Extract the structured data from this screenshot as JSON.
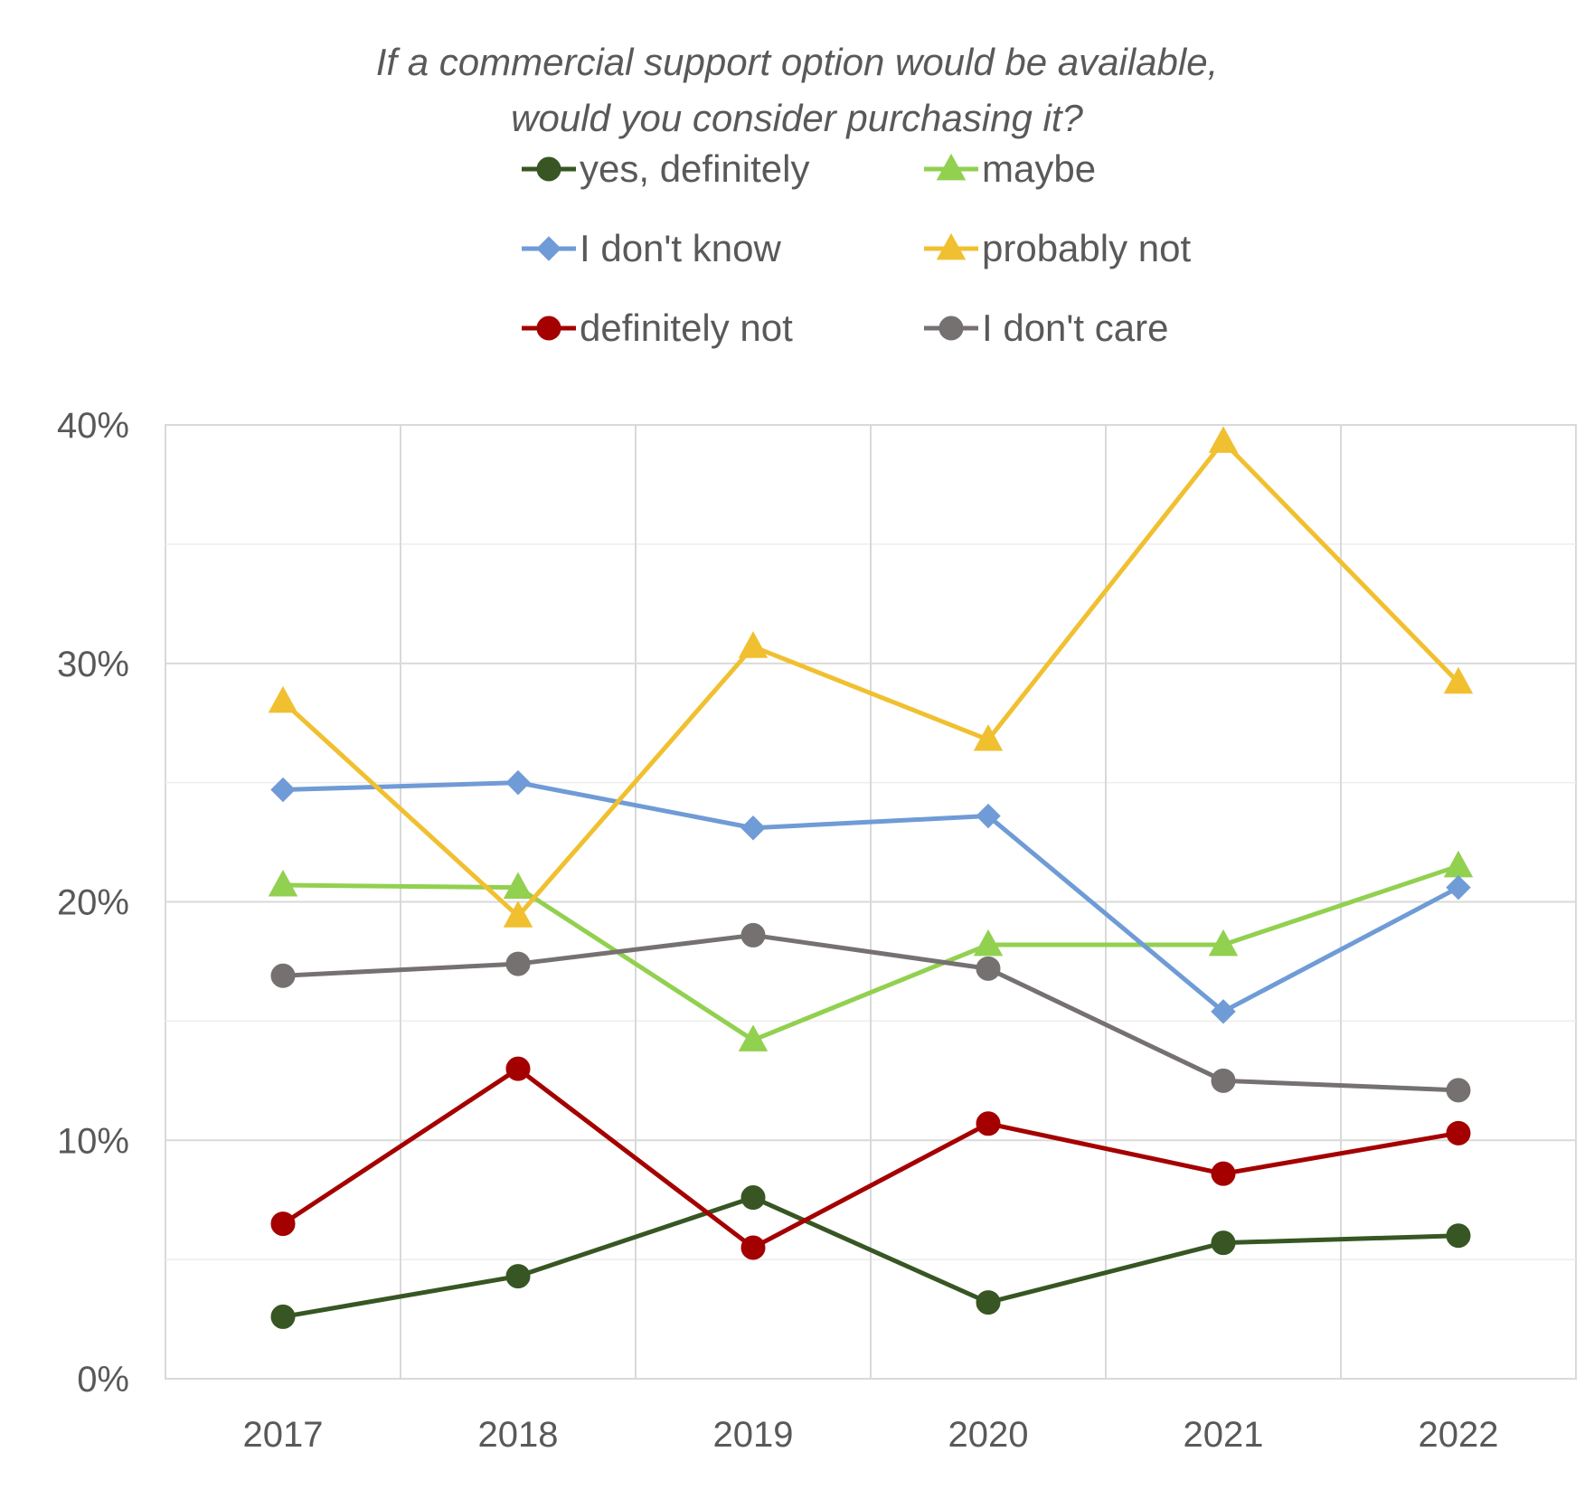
{
  "chart_data": {
    "type": "line",
    "title": [
      "If a commercial support option would be available,",
      "would you consider purchasing it?"
    ],
    "xlabel": "",
    "ylabel": "",
    "categories": [
      "2017",
      "2018",
      "2019",
      "2020",
      "2021",
      "2022"
    ],
    "ylim": [
      0,
      40
    ],
    "y_ticks": [
      "0%",
      "10%",
      "20%",
      "30%",
      "40%"
    ],
    "grid": true,
    "legend_position": "top",
    "series": [
      {
        "name": "yes, definitely",
        "color": "#375623",
        "marker": "circle",
        "values": [
          2.6,
          4.3,
          7.6,
          3.2,
          5.7,
          6.0
        ]
      },
      {
        "name": "maybe",
        "color": "#92d050",
        "marker": "triangle",
        "values": [
          20.7,
          20.6,
          14.2,
          18.2,
          18.2,
          21.5
        ]
      },
      {
        "name": "I don't know",
        "color": "#6f9bd6",
        "marker": "diamond",
        "values": [
          24.7,
          25.0,
          23.1,
          23.6,
          15.4,
          20.6
        ]
      },
      {
        "name": "probably not",
        "color": "#f0c030",
        "marker": "triangle",
        "values": [
          28.4,
          19.4,
          30.7,
          26.8,
          39.3,
          29.2
        ]
      },
      {
        "name": "definitely not",
        "color": "#a50000",
        "marker": "circle",
        "values": [
          6.5,
          13.0,
          5.5,
          10.7,
          8.6,
          10.3
        ]
      },
      {
        "name": "I don't care",
        "color": "#767171",
        "marker": "circle",
        "values": [
          16.9,
          17.4,
          18.6,
          17.2,
          12.5,
          12.1
        ]
      }
    ]
  }
}
